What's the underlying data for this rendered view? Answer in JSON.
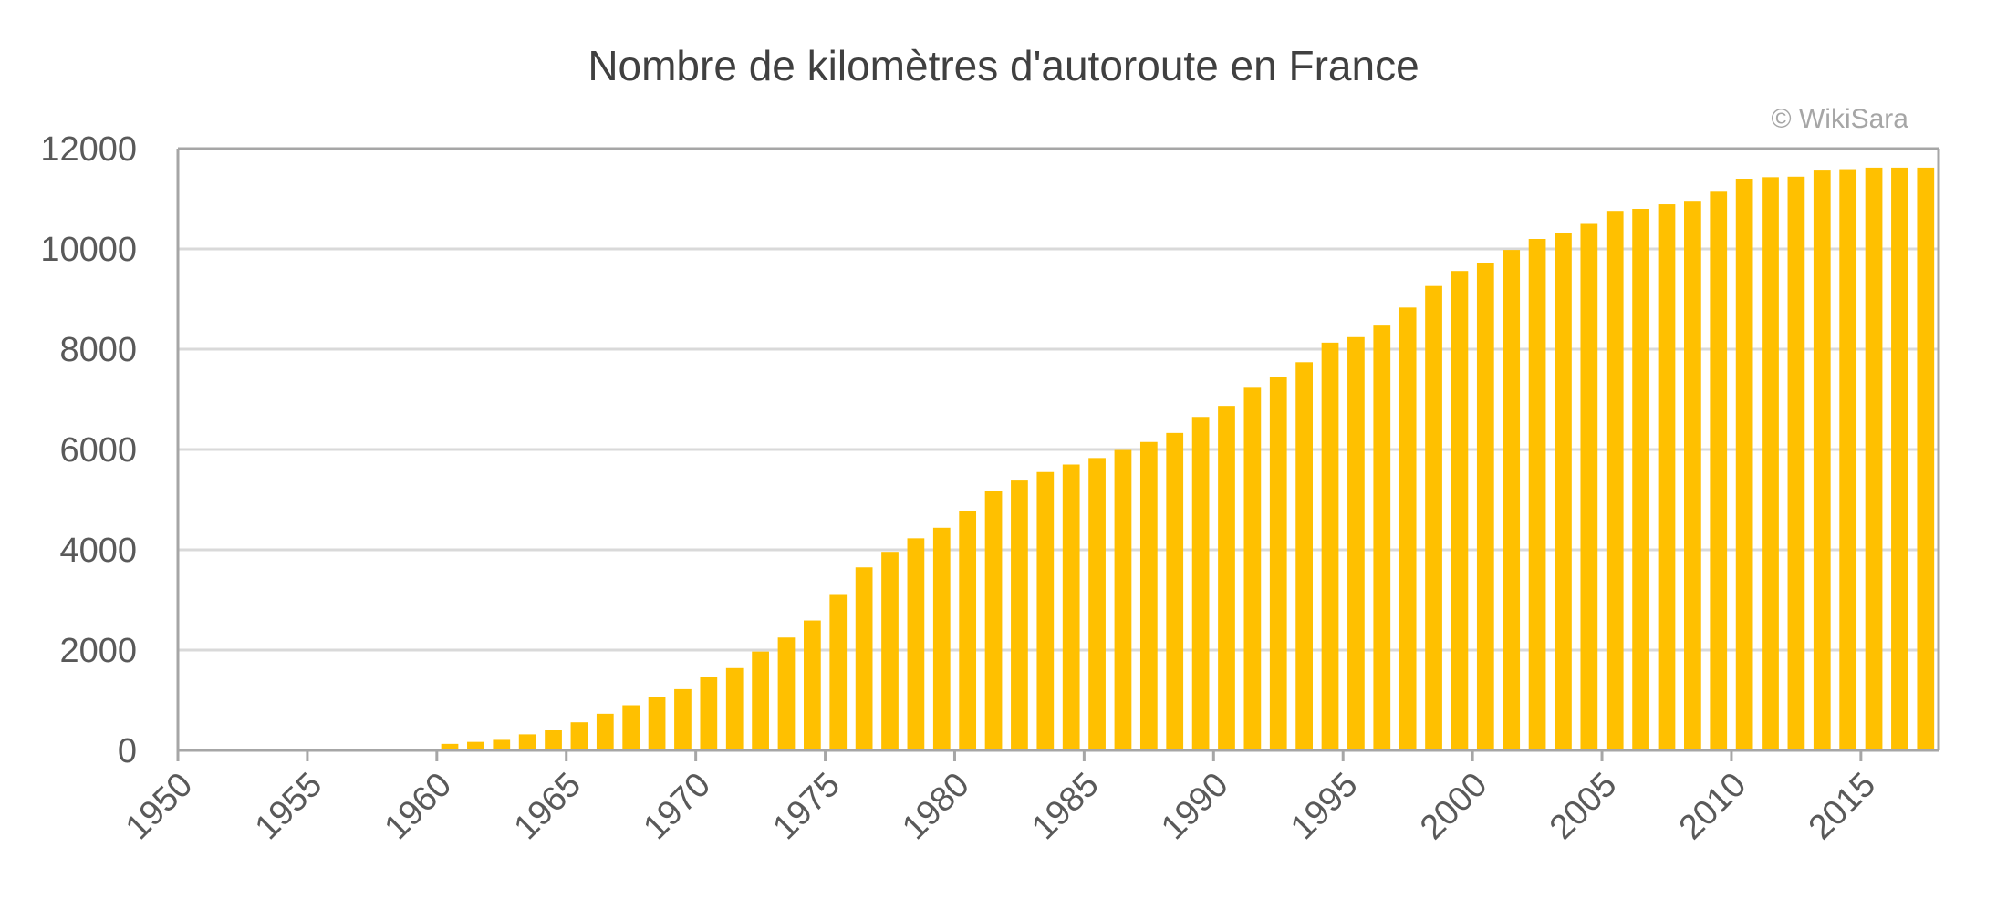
{
  "chart_data": {
    "type": "bar",
    "title": "Nombre de kilomètres d'autoroute en France",
    "watermark": "© WikiSara",
    "xlabel": "",
    "ylabel": "",
    "ylim": [
      0,
      12000
    ],
    "yticks": [
      0,
      2000,
      4000,
      6000,
      8000,
      10000,
      12000
    ],
    "xticks": [
      1950,
      1955,
      1960,
      1965,
      1970,
      1975,
      1980,
      1985,
      1990,
      1995,
      2000,
      2005,
      2010,
      2015
    ],
    "x_range": [
      1950,
      2018
    ],
    "grid": true,
    "legend": "none",
    "colors": {
      "bar": "#FFC000",
      "grid": "#D9D9D9",
      "axis": "#A6A6A6",
      "text": "#595959",
      "watermark": "#A6A6A6"
    },
    "categories": [
      1950,
      1951,
      1952,
      1953,
      1954,
      1955,
      1956,
      1957,
      1958,
      1959,
      1960,
      1961,
      1962,
      1963,
      1964,
      1965,
      1966,
      1967,
      1968,
      1969,
      1970,
      1971,
      1972,
      1973,
      1974,
      1975,
      1976,
      1977,
      1978,
      1979,
      1980,
      1981,
      1982,
      1983,
      1984,
      1985,
      1986,
      1987,
      1988,
      1989,
      1990,
      1991,
      1992,
      1993,
      1994,
      1995,
      1996,
      1997,
      1998,
      1999,
      2000,
      2001,
      2002,
      2003,
      2004,
      2005,
      2006,
      2007,
      2008,
      2009,
      2010,
      2011,
      2012,
      2013,
      2014,
      2015,
      2016,
      2017
    ],
    "values": [
      0,
      0,
      0,
      0,
      0,
      0,
      0,
      0,
      0,
      0,
      130,
      170,
      210,
      320,
      400,
      560,
      730,
      900,
      1060,
      1220,
      1470,
      1640,
      1970,
      2250,
      2590,
      3100,
      3650,
      3960,
      4230,
      4440,
      4770,
      5180,
      5380,
      5550,
      5700,
      5830,
      5990,
      6150,
      6330,
      6650,
      6870,
      7230,
      7450,
      7740,
      8130,
      8240,
      8470,
      8830,
      9260,
      9560,
      9720,
      9980,
      10200,
      10320,
      10500,
      10760,
      10800,
      10890,
      10960,
      11140,
      11400,
      11430,
      11440,
      11580,
      11590,
      11620,
      11620,
      11620
    ]
  }
}
